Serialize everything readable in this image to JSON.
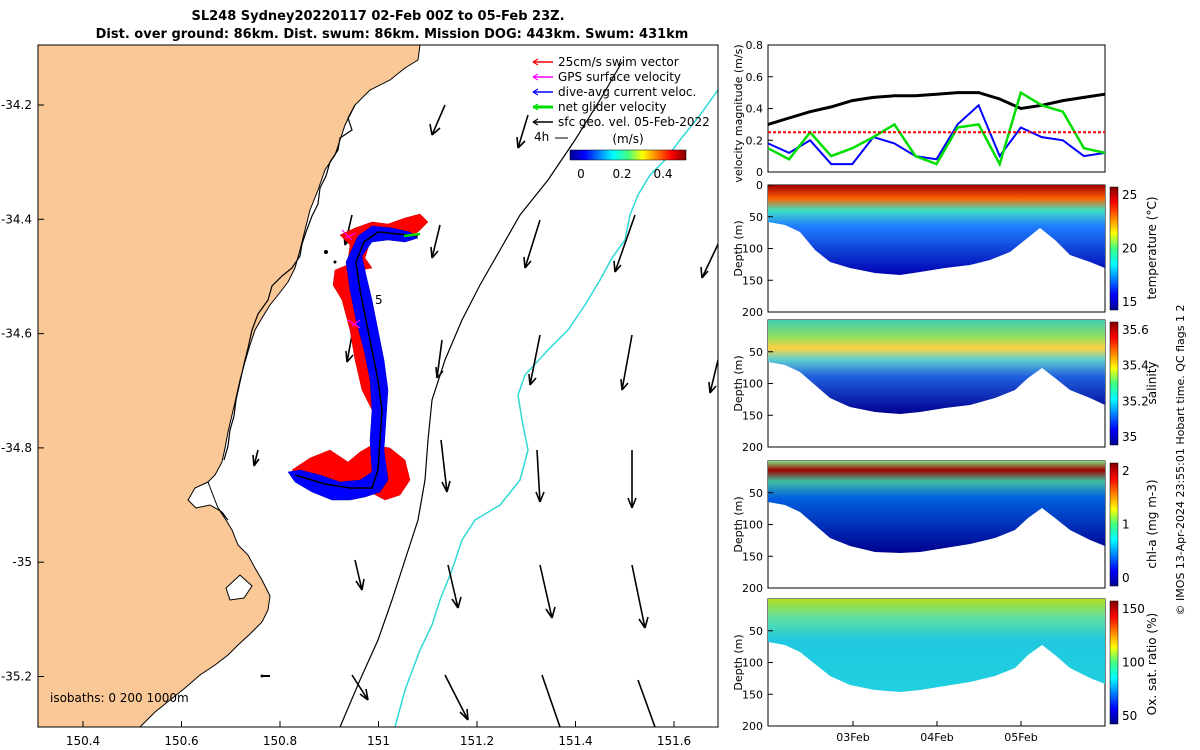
{
  "title": {
    "line1": "SL248 Sydney20220117 02-Feb 00Z to 05-Feb 23Z.",
    "line2": "Dist. over ground: 86km. Dist. swum: 86km. Mission DOG: 443km. Swum: 431km"
  },
  "map": {
    "xticks": [
      "150.4",
      "150.6",
      "150.8",
      "151",
      "151.2",
      "151.4",
      "151.6"
    ],
    "yticks": [
      "-34.2",
      "-34.4",
      "-34.6",
      "-34.8",
      "-35",
      "-35.2"
    ],
    "legend": [
      {
        "label": "25cm/s swim vector",
        "color": "#ff0000"
      },
      {
        "label": "GPS surface velocity",
        "color": "#ff00ff"
      },
      {
        "label": "dive-avg current veloc.",
        "color": "#0000ff"
      },
      {
        "label": "net glider velocity",
        "color": "#00dd00"
      },
      {
        "label": "sfc geo. vel. 05-Feb-2022",
        "color": "#000000"
      }
    ],
    "scale_label": "4h",
    "colorbar": {
      "title": "(m/s)",
      "ticks": [
        "0",
        "0.2",
        "0.4"
      ]
    },
    "track_label": "5",
    "isobaths_label": "isobaths: 0   200  1000m",
    "land_color": "#f9c896",
    "isobath_1000_color": "#30d8d8"
  },
  "chart_data": [
    {
      "type": "line",
      "title": "velocity",
      "ylabel": "velocity magnitude (m/s)",
      "ylim": [
        0,
        0.8
      ],
      "yticks": [
        "0",
        "0.2",
        "0.4",
        "0.6",
        "0.8"
      ],
      "x_days": [
        0,
        0.25,
        0.5,
        0.75,
        1.0,
        1.25,
        1.5,
        1.75,
        2.0,
        2.25,
        2.5,
        2.75,
        3.0,
        3.25,
        3.5,
        3.75,
        4.0
      ],
      "series": [
        {
          "name": "sfc geo. vel.",
          "color": "#000000",
          "values": [
            0.3,
            0.34,
            0.38,
            0.41,
            0.45,
            0.47,
            0.48,
            0.48,
            0.49,
            0.5,
            0.5,
            0.46,
            0.4,
            0.42,
            0.45,
            0.47,
            0.49
          ]
        },
        {
          "name": "dive-avg current veloc.",
          "color": "#0000ff",
          "values": [
            0.18,
            0.12,
            0.2,
            0.05,
            0.05,
            0.22,
            0.18,
            0.1,
            0.08,
            0.3,
            0.42,
            0.1,
            0.28,
            0.22,
            0.2,
            0.1,
            0.12
          ]
        },
        {
          "name": "net glider velocity",
          "color": "#00dd00",
          "values": [
            0.15,
            0.08,
            0.25,
            0.1,
            0.15,
            0.22,
            0.3,
            0.1,
            0.05,
            0.28,
            0.3,
            0.05,
            0.5,
            0.42,
            0.38,
            0.15,
            0.12
          ]
        },
        {
          "name": "25cm/s swim vector",
          "color": "#ff0000",
          "values": [
            0.25,
            0.25,
            0.25,
            0.25,
            0.25,
            0.25,
            0.25,
            0.25,
            0.25,
            0.25,
            0.25,
            0.25,
            0.25,
            0.25,
            0.25,
            0.25,
            0.25
          ]
        }
      ]
    },
    {
      "type": "heatmap",
      "variable": "temperature",
      "ylabel": "Depth (m)",
      "colorbar_label": "temperature (°C)",
      "colorbar_ticks": [
        "25",
        "20",
        "15"
      ],
      "ylim": [
        200,
        0
      ],
      "yticks": [
        "0",
        "50",
        "100",
        "150",
        "200"
      ]
    },
    {
      "type": "heatmap",
      "variable": "salinity",
      "ylabel": "Depth (m)",
      "colorbar_label": "salinity",
      "colorbar_ticks": [
        "35.6",
        "35.4",
        "35.2",
        "35"
      ],
      "ylim": [
        200,
        0
      ],
      "yticks": [
        "50",
        "100",
        "150",
        "200"
      ]
    },
    {
      "type": "heatmap",
      "variable": "chl-a",
      "ylabel": "Depth (m)",
      "colorbar_label": "chl-a (mg m-3)",
      "colorbar_ticks": [
        "2",
        "1",
        "0"
      ],
      "ylim": [
        200,
        0
      ],
      "yticks": [
        "50",
        "100",
        "150",
        "200"
      ]
    },
    {
      "type": "heatmap",
      "variable": "oxygen",
      "ylabel": "Depth (m)",
      "colorbar_label": "Ox. sat. ratio (%)",
      "colorbar_ticks": [
        "150",
        "100",
        "50"
      ],
      "ylim": [
        200,
        0
      ],
      "yticks": [
        "50",
        "100",
        "150",
        "200"
      ],
      "xticks": [
        "03Feb",
        "04Feb",
        "05Feb"
      ]
    }
  ],
  "side_note": "© IMOS 13-Apr-2024 23:55:01 Hobart time. QC flags 1  2"
}
